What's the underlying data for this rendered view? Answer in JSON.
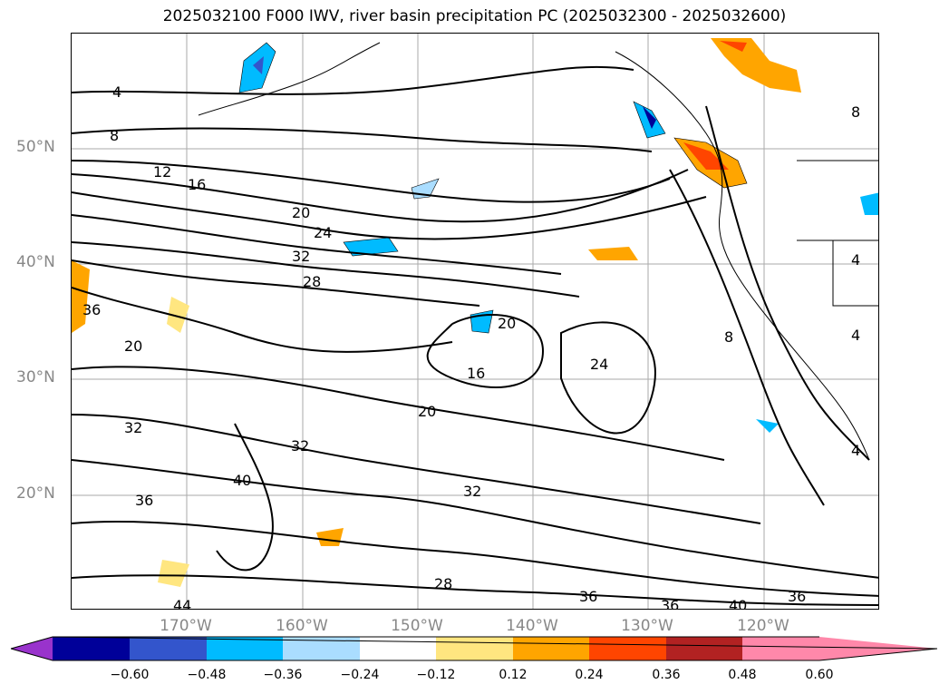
{
  "title": "2025032100 F000 IWV, river basin precipitation PC (2025032300 - 2025032600)",
  "latitude_labels": [
    "50°N",
    "40°N",
    "30°N",
    "20°N"
  ],
  "longitude_labels": [
    "170°W",
    "160°W",
    "150°W",
    "140°W",
    "130°W",
    "120°W"
  ],
  "colorbar": {
    "ticks": [
      "−0.60",
      "−0.48",
      "−0.36",
      "−0.24",
      "−0.12",
      "0.12",
      "0.24",
      "0.36",
      "0.48",
      "0.60"
    ],
    "colors": [
      "#9933cc",
      "#000099",
      "#3355cc",
      "#00bbff",
      "#aaddff",
      "#ffffff",
      "#ffe680",
      "#ffa500",
      "#ff4500",
      "#b22222",
      "#ff88aa"
    ]
  },
  "contour_labels": [
    "4",
    "8",
    "12",
    "16",
    "20",
    "24",
    "28",
    "32",
    "36",
    "40",
    "44"
  ]
}
